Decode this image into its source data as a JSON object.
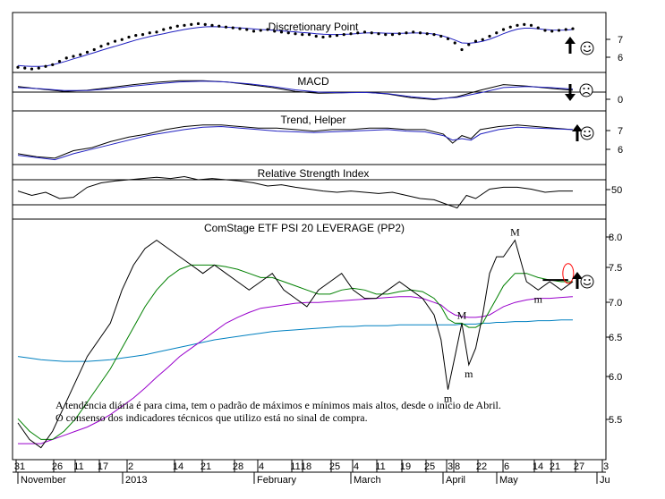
{
  "colors": {
    "price": "#000000",
    "ma_short": "#008000",
    "ma_medium": "#9900cc",
    "ma_long": "#0080c0",
    "indicator_line": "#2020c0",
    "highlight": "#ff0000"
  },
  "annotation": {
    "line1": "A tendência diária é para cima, tem o padrão de máximos e mínimos mais altos, desde o início de Abril.",
    "line2": "O consenso dos indicadores técnicos que utilizo está no sinal de compra."
  },
  "xaxis": {
    "tick_labels": [
      "31",
      "26",
      "11",
      "17",
      "2",
      "14",
      "21",
      "28",
      "4",
      "11",
      "18",
      "25",
      "4",
      "11",
      "19",
      "25",
      "3",
      "8",
      "22",
      "6",
      "14",
      "21",
      "27",
      "3"
    ],
    "month_labels": [
      "November",
      "2013",
      "February",
      "March",
      "April",
      "May",
      "Ju"
    ]
  },
  "chart_data": [
    {
      "type": "scatter",
      "title": "Discretionary Point",
      "yticks": [
        "7",
        "6"
      ],
      "ylim": [
        5.2,
        8.4
      ],
      "signal": {
        "arrow": "up-arrow-icon",
        "face": "happy-face-icon"
      },
      "x": [
        0,
        3,
        6,
        9,
        12,
        15,
        18,
        21,
        24,
        27,
        30,
        33,
        36,
        39,
        42,
        45,
        48,
        51,
        54,
        57,
        60,
        63,
        66,
        69,
        72,
        75,
        78,
        81,
        84,
        87,
        90,
        93,
        96,
        99,
        102,
        105,
        108,
        111,
        114,
        117,
        120,
        123,
        126,
        129,
        132,
        135,
        138,
        141,
        144,
        147,
        150,
        153,
        156,
        159,
        162,
        165,
        168,
        171,
        174,
        177,
        180,
        183,
        186,
        189,
        192,
        195,
        198,
        201,
        204,
        207,
        210,
        213,
        216,
        219,
        222,
        225,
        228,
        231,
        234,
        237,
        240
      ],
      "dots": [
        5.35,
        5.3,
        5.25,
        5.3,
        5.4,
        5.5,
        5.7,
        5.9,
        6.0,
        6.1,
        6.25,
        6.4,
        6.6,
        6.75,
        6.9,
        7.0,
        7.15,
        7.25,
        7.3,
        7.4,
        7.45,
        7.6,
        7.7,
        7.8,
        7.85,
        7.9,
        7.95,
        7.9,
        7.85,
        7.8,
        7.75,
        7.7,
        7.65,
        7.6,
        7.5,
        7.55,
        7.6,
        7.5,
        7.45,
        7.4,
        7.35,
        7.3,
        7.3,
        7.2,
        7.15,
        7.2,
        7.25,
        7.3,
        7.35,
        7.4,
        7.45,
        7.4,
        7.35,
        7.3,
        7.3,
        7.35,
        7.4,
        7.45,
        7.4,
        7.35,
        7.3,
        7.2,
        7.05,
        6.8,
        6.4,
        6.7,
        6.9,
        7.0,
        7.2,
        7.4,
        7.6,
        7.75,
        7.85,
        7.9,
        7.85,
        7.7,
        7.55,
        7.5,
        7.55,
        7.6,
        7.65
      ],
      "line": [
        5.45,
        5.42,
        5.4,
        5.4,
        5.42,
        5.5,
        5.6,
        5.72,
        5.85,
        5.97,
        6.1,
        6.22,
        6.35,
        6.48,
        6.6,
        6.72,
        6.85,
        6.97,
        7.08,
        7.18,
        7.27,
        7.35,
        7.44,
        7.52,
        7.6,
        7.67,
        7.72,
        7.76,
        7.77,
        7.76,
        7.74,
        7.72,
        7.7,
        7.67,
        7.63,
        7.6,
        7.58,
        7.55,
        7.52,
        7.49,
        7.46,
        7.42,
        7.39,
        7.35,
        7.32,
        7.3,
        7.3,
        7.31,
        7.33,
        7.36,
        7.39,
        7.4,
        7.4,
        7.38,
        7.37,
        7.37,
        7.38,
        7.39,
        7.39,
        7.37,
        7.33,
        7.25,
        7.12,
        6.97,
        6.8,
        6.78,
        6.82,
        6.9,
        7.02,
        7.18,
        7.35,
        7.5,
        7.62,
        7.68,
        7.68,
        7.64,
        7.6,
        7.57,
        7.56,
        7.57,
        7.6
      ]
    },
    {
      "type": "line",
      "title": "MACD",
      "yticks": [
        "0"
      ],
      "ylim": [
        -0.45,
        0.45
      ],
      "signal": {
        "arrow": "down-arrow-icon",
        "face": "sad-face-icon"
      },
      "x": [
        0,
        10,
        20,
        30,
        40,
        50,
        60,
        70,
        80,
        90,
        100,
        110,
        120,
        130,
        140,
        150,
        160,
        170,
        180,
        190,
        200,
        210,
        220,
        230,
        240
      ],
      "series": [
        {
          "values": [
            0.15,
            0.08,
            0.02,
            0.05,
            0.12,
            0.2,
            0.26,
            0.3,
            0.3,
            0.27,
            0.2,
            0.12,
            0.02,
            -0.03,
            -0.02,
            0.0,
            -0.05,
            -0.15,
            -0.2,
            -0.12,
            0.05,
            0.2,
            0.16,
            0.1,
            0.05
          ]
        },
        {
          "values": [
            0.12,
            0.09,
            0.04,
            0.04,
            0.09,
            0.16,
            0.22,
            0.27,
            0.29,
            0.27,
            0.22,
            0.15,
            0.06,
            0.0,
            -0.02,
            -0.01,
            -0.04,
            -0.12,
            -0.18,
            -0.14,
            -0.02,
            0.12,
            0.15,
            0.12,
            0.08
          ]
        }
      ]
    },
    {
      "type": "line",
      "title": "Trend, Helper",
      "yticks": [
        "7",
        "6"
      ],
      "ylim": [
        5.0,
        8.2
      ],
      "signal": {
        "arrow": "up-arrow-icon",
        "face": "happy-face-icon"
      },
      "x": [
        0,
        8,
        16,
        24,
        32,
        40,
        48,
        56,
        64,
        72,
        80,
        88,
        96,
        104,
        112,
        120,
        128,
        136,
        144,
        152,
        160,
        168,
        176,
        184,
        188,
        192,
        196,
        200,
        208,
        216,
        224,
        232,
        240
      ],
      "series": [
        {
          "values": [
            5.6,
            5.4,
            5.3,
            5.8,
            6.0,
            6.4,
            6.7,
            6.9,
            7.2,
            7.4,
            7.5,
            7.5,
            7.4,
            7.3,
            7.3,
            7.2,
            7.1,
            7.2,
            7.2,
            7.3,
            7.3,
            7.2,
            7.2,
            6.9,
            6.3,
            6.8,
            6.6,
            7.2,
            7.4,
            7.5,
            7.4,
            7.3,
            7.2
          ]
        },
        {
          "values": [
            5.5,
            5.35,
            5.2,
            5.6,
            5.9,
            6.2,
            6.5,
            6.8,
            7.0,
            7.2,
            7.35,
            7.4,
            7.3,
            7.2,
            7.1,
            7.05,
            7.0,
            7.05,
            7.1,
            7.15,
            7.2,
            7.1,
            7.05,
            6.8,
            6.5,
            6.6,
            6.5,
            6.9,
            7.2,
            7.35,
            7.3,
            7.25,
            7.2
          ]
        }
      ]
    },
    {
      "type": "line",
      "title": "Relative Strength Index",
      "yticks": [
        "50"
      ],
      "ylim": [
        10,
        90
      ],
      "upper": 70,
      "lower": 30,
      "signal": {
        "arrow": "",
        "face": ""
      },
      "x": [
        0,
        6,
        12,
        18,
        24,
        30,
        36,
        42,
        48,
        54,
        60,
        66,
        72,
        78,
        84,
        90,
        96,
        102,
        108,
        114,
        120,
        126,
        132,
        138,
        144,
        150,
        156,
        162,
        168,
        174,
        180,
        186,
        190,
        194,
        198,
        204,
        210,
        216,
        222,
        228,
        234,
        240
      ],
      "series": [
        {
          "values": [
            52,
            45,
            50,
            40,
            42,
            58,
            65,
            68,
            70,
            72,
            74,
            72,
            75,
            70,
            72,
            70,
            68,
            65,
            60,
            62,
            58,
            55,
            52,
            50,
            52,
            50,
            48,
            50,
            45,
            40,
            38,
            30,
            25,
            45,
            40,
            55,
            58,
            58,
            55,
            50,
            52,
            52
          ]
        }
      ]
    },
    {
      "type": "line",
      "title": "ComStage ETF PSI 20 LEVERAGE (PP2)",
      "yticks": [
        "8.0",
        "7.5",
        "7.0",
        "6.5",
        "6.0",
        "5.5"
      ],
      "ylim": [
        5.3,
        8.1
      ],
      "signal": {
        "arrow": "up-arrow-icon",
        "face": "happy-face-icon"
      },
      "x": [
        0,
        5,
        10,
        15,
        20,
        25,
        30,
        35,
        40,
        45,
        50,
        55,
        60,
        65,
        70,
        75,
        80,
        85,
        90,
        95,
        100,
        105,
        110,
        115,
        120,
        125,
        130,
        135,
        140,
        145,
        150,
        155,
        160,
        165,
        170,
        175,
        180,
        183,
        186,
        189,
        192,
        195,
        198,
        201,
        204,
        207,
        210,
        215,
        220,
        225,
        230,
        235,
        240
      ],
      "series": [
        {
          "name": "price",
          "values": [
            5.7,
            5.5,
            5.4,
            5.6,
            5.9,
            6.2,
            6.5,
            6.7,
            6.9,
            7.3,
            7.6,
            7.8,
            7.9,
            7.8,
            7.7,
            7.6,
            7.5,
            7.6,
            7.5,
            7.4,
            7.3,
            7.4,
            7.5,
            7.3,
            7.2,
            7.1,
            7.3,
            7.4,
            7.5,
            7.3,
            7.2,
            7.2,
            7.3,
            7.4,
            7.3,
            7.2,
            7.0,
            6.7,
            6.1,
            6.5,
            6.9,
            6.4,
            6.6,
            7.0,
            7.5,
            7.7,
            7.7,
            7.9,
            7.4,
            7.3,
            7.4,
            7.3,
            7.4
          ]
        },
        {
          "name": "ma_short",
          "values": [
            5.75,
            5.6,
            5.5,
            5.5,
            5.6,
            5.75,
            5.95,
            6.15,
            6.35,
            6.6,
            6.85,
            7.1,
            7.3,
            7.45,
            7.55,
            7.6,
            7.6,
            7.6,
            7.58,
            7.55,
            7.5,
            7.45,
            7.45,
            7.4,
            7.35,
            7.3,
            7.25,
            7.25,
            7.3,
            7.32,
            7.3,
            7.25,
            7.25,
            7.28,
            7.3,
            7.28,
            7.2,
            7.1,
            6.95,
            6.9,
            6.9,
            6.85,
            6.85,
            6.9,
            7.05,
            7.2,
            7.35,
            7.5,
            7.5,
            7.45,
            7.42,
            7.4,
            7.4
          ]
        },
        {
          "name": "ma_medium",
          "values": [
            5.45,
            5.45,
            5.45,
            5.5,
            5.55,
            5.6,
            5.65,
            5.72,
            5.8,
            5.9,
            6.0,
            6.12,
            6.25,
            6.37,
            6.5,
            6.6,
            6.7,
            6.8,
            6.9,
            6.97,
            7.03,
            7.08,
            7.1,
            7.12,
            7.14,
            7.15,
            7.15,
            7.16,
            7.17,
            7.18,
            7.19,
            7.2,
            7.21,
            7.22,
            7.22,
            7.2,
            7.15,
            7.12,
            7.05,
            7.0,
            6.98,
            6.97,
            6.97,
            6.98,
            7.0,
            7.05,
            7.1,
            7.15,
            7.18,
            7.2,
            7.2,
            7.21,
            7.22
          ]
        },
        {
          "name": "ma_long",
          "values": [
            6.5,
            6.48,
            6.46,
            6.45,
            6.44,
            6.44,
            6.44,
            6.45,
            6.46,
            6.48,
            6.5,
            6.52,
            6.55,
            6.58,
            6.61,
            6.64,
            6.67,
            6.7,
            6.72,
            6.74,
            6.76,
            6.78,
            6.8,
            6.81,
            6.82,
            6.83,
            6.84,
            6.85,
            6.86,
            6.86,
            6.87,
            6.87,
            6.87,
            6.88,
            6.88,
            6.88,
            6.88,
            6.88,
            6.88,
            6.88,
            6.89,
            6.89,
            6.89,
            6.9,
            6.9,
            6.91,
            6.91,
            6.92,
            6.92,
            6.93,
            6.93,
            6.94,
            6.94
          ]
        }
      ],
      "markers": [
        {
          "label": "m",
          "x": 186,
          "y": 6.1,
          "pos": "below"
        },
        {
          "label": "M",
          "x": 192,
          "y": 6.9,
          "pos": "above"
        },
        {
          "label": "m",
          "x": 195,
          "y": 6.4,
          "pos": "below"
        },
        {
          "label": "M",
          "x": 215,
          "y": 7.9,
          "pos": "above"
        },
        {
          "label": "m",
          "x": 225,
          "y": 7.3,
          "pos": "below"
        }
      ]
    }
  ]
}
